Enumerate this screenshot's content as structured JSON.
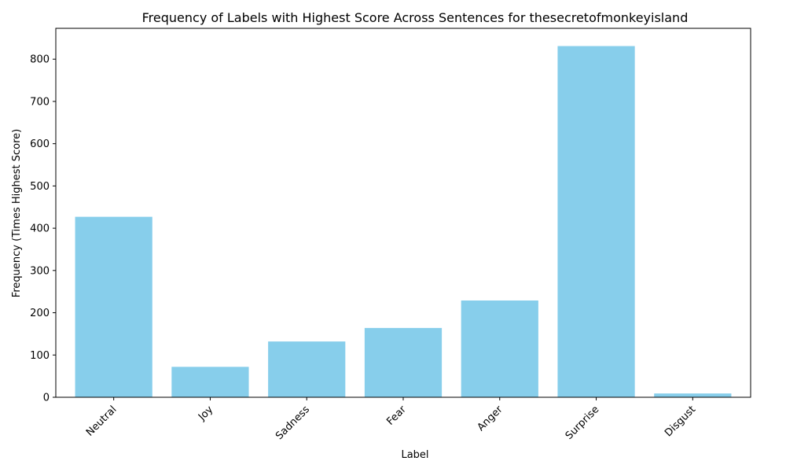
{
  "chart_data": {
    "type": "bar",
    "title": "Frequency of Labels with Highest Score Across Sentences for thesecretofmonkeyisland",
    "xlabel": "Label",
    "ylabel": "Frequency (Times Highest Score)",
    "categories": [
      "Neutral",
      "Joy",
      "Sadness",
      "Fear",
      "Anger",
      "Surprise",
      "Disgust"
    ],
    "values": [
      427,
      72,
      132,
      164,
      229,
      831,
      9
    ],
    "ylim": [
      0,
      873
    ],
    "yticks": [
      0,
      100,
      200,
      300,
      400,
      500,
      600,
      700,
      800
    ],
    "bar_color": "#87CEEB",
    "grid": false,
    "legend": "none"
  }
}
